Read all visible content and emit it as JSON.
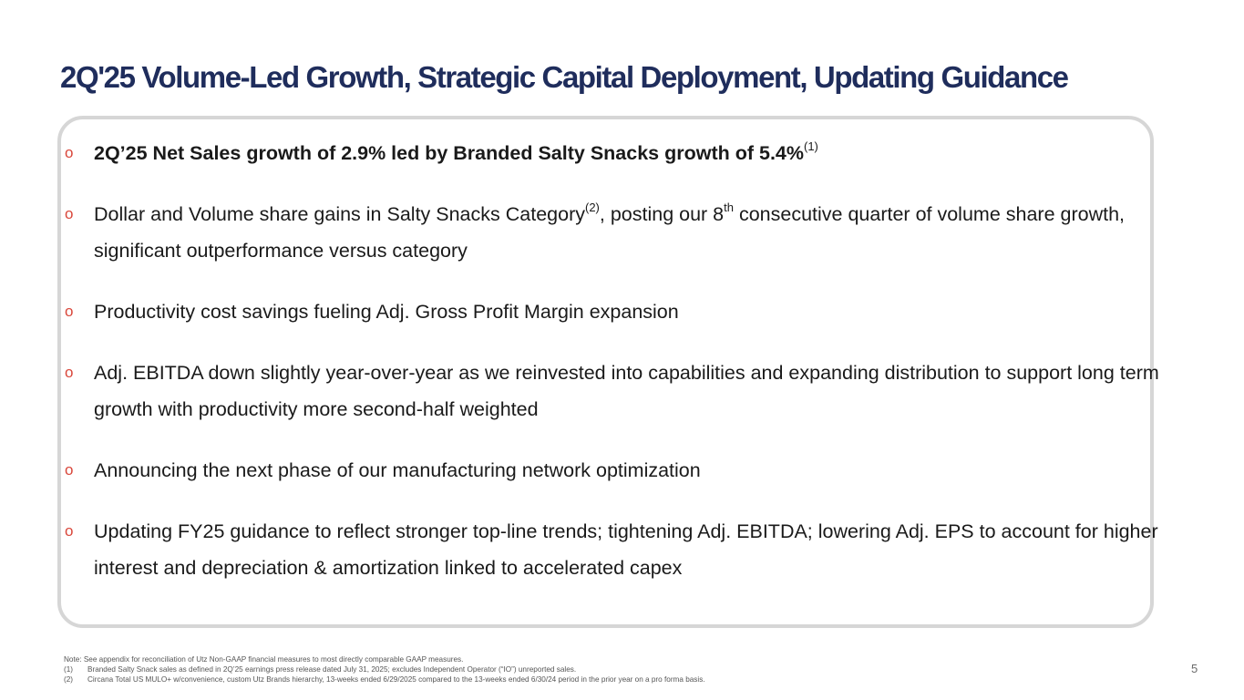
{
  "slide": {
    "title": "2Q'25 Volume-Led Growth, Strategic Capital Deployment, Updating Guidance",
    "page_number": "5",
    "marker_glyph": "o",
    "accent_color": "#d9473b",
    "title_color": "#1f2d5c"
  },
  "bullets": [
    {
      "text": "2Q’25 Net Sales growth of 2.9% led by Branded Salty Snacks growth of 5.4%",
      "sup": "(1)"
    },
    {
      "part1": "Dollar and Volume share gains in Salty Snacks Category",
      "sup1": "(2)",
      "part2": ", posting our 8",
      "sup2": "th",
      "part3": " consecutive quarter of volume share growth, significant outperformance versus category"
    },
    {
      "text": "Productivity cost savings fueling Adj. Gross Profit Margin expansion"
    },
    {
      "text": "Adj. EBITDA down slightly year-over-year as we reinvested into capabilities and expanding distribution to support long term growth with productivity more second-half weighted"
    },
    {
      "text": "Announcing the next phase of our manufacturing network optimization"
    },
    {
      "text": "Updating FY25 guidance to reflect stronger top-line trends; tightening Adj. EBITDA; lowering Adj. EPS to account for higher interest and depreciation & amortization linked to accelerated capex"
    }
  ],
  "footnotes": {
    "note": "Note: See appendix for reconciliation of Utz Non-GAAP financial measures to most directly comparable GAAP measures.",
    "items": [
      {
        "num": "(1)",
        "text": "Branded Salty Snack sales as defined in 2Q’25 earnings press release dated July 31, 2025; excludes Independent Operator (“IO”) unreported sales."
      },
      {
        "num": "(2)",
        "text": "Circana Total US MULO+ w/convenience, custom Utz Brands hierarchy, 13-weeks ended 6/29/2025 compared to the 13-weeks ended 6/30/24 period in the prior year on a pro forma basis."
      }
    ]
  }
}
